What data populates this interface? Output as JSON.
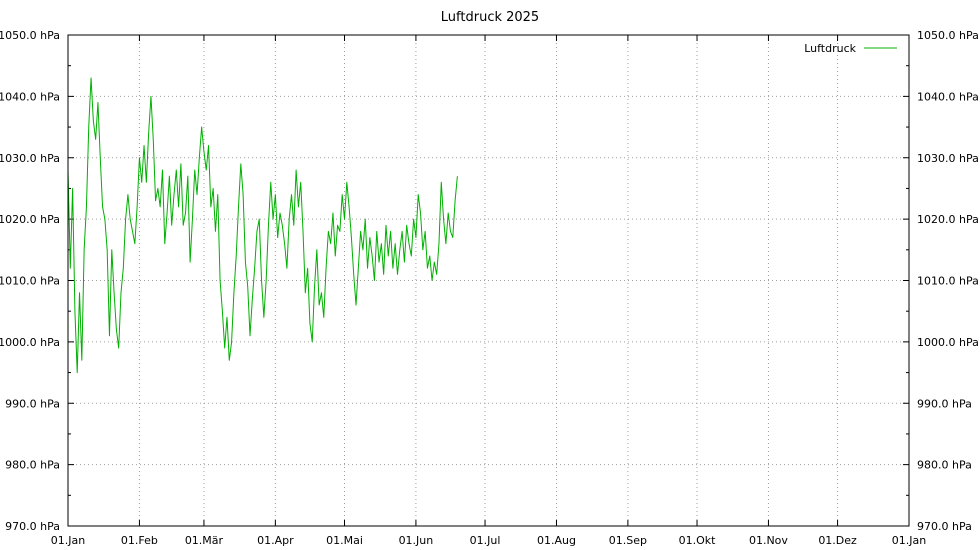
{
  "chart_data": {
    "type": "line",
    "title": "Luftdruck 2025",
    "xlabel": "",
    "ylabel": "",
    "unit": "hPa",
    "ylim": [
      970,
      1050
    ],
    "y_ticks": [
      "970.0 hPa",
      "980.0 hPa",
      "990.0 hPa",
      "1000.0 hPa",
      "1010.0 hPa",
      "1020.0 hPa",
      "1030.0 hPa",
      "1040.0 hPa",
      "1050.0 hPa"
    ],
    "y_tick_values": [
      970,
      980,
      990,
      1000,
      1010,
      1020,
      1030,
      1040,
      1050
    ],
    "x_range": [
      "2025-01-01",
      "2026-01-01"
    ],
    "x_ticks": [
      {
        "date": "2025-01-01",
        "label": "01.Jan"
      },
      {
        "date": "2025-02-01",
        "label": "01.Feb"
      },
      {
        "date": "2025-03-01",
        "label": "01.Mär"
      },
      {
        "date": "2025-04-01",
        "label": "01.Apr"
      },
      {
        "date": "2025-05-01",
        "label": "01.Mai"
      },
      {
        "date": "2025-06-01",
        "label": "01.Jun"
      },
      {
        "date": "2025-07-01",
        "label": "01.Jul"
      },
      {
        "date": "2025-08-01",
        "label": "01.Aug"
      },
      {
        "date": "2025-09-01",
        "label": "01.Sep"
      },
      {
        "date": "2025-10-01",
        "label": "01.Okt"
      },
      {
        "date": "2025-11-01",
        "label": "01.Nov"
      },
      {
        "date": "2025-12-01",
        "label": "01.Dez"
      },
      {
        "date": "2026-01-01",
        "label": "01.Jan"
      }
    ],
    "grid": true,
    "legend_position": "top-right",
    "series": [
      {
        "name": "Luftdruck",
        "color": "#00b000",
        "points": [
          [
            "2025-01-01",
            1028
          ],
          [
            "2025-01-02",
            1012
          ],
          [
            "2025-01-03",
            1025
          ],
          [
            "2025-01-04",
            1005
          ],
          [
            "2025-01-05",
            995
          ],
          [
            "2025-01-06",
            1008
          ],
          [
            "2025-01-07",
            997
          ],
          [
            "2025-01-08",
            1015
          ],
          [
            "2025-01-09",
            1022
          ],
          [
            "2025-01-10",
            1035
          ],
          [
            "2025-01-11",
            1043
          ],
          [
            "2025-01-12",
            1036
          ],
          [
            "2025-01-13",
            1033
          ],
          [
            "2025-01-14",
            1039
          ],
          [
            "2025-01-15",
            1030
          ],
          [
            "2025-01-16",
            1022
          ],
          [
            "2025-01-17",
            1020
          ],
          [
            "2025-01-18",
            1015
          ],
          [
            "2025-01-19",
            1001
          ],
          [
            "2025-01-20",
            1015
          ],
          [
            "2025-01-21",
            1008
          ],
          [
            "2025-01-22",
            1002
          ],
          [
            "2025-01-23",
            999
          ],
          [
            "2025-01-24",
            1008
          ],
          [
            "2025-01-25",
            1012
          ],
          [
            "2025-01-26",
            1020
          ],
          [
            "2025-01-27",
            1024
          ],
          [
            "2025-01-28",
            1020
          ],
          [
            "2025-01-29",
            1018
          ],
          [
            "2025-01-30",
            1016
          ],
          [
            "2025-01-31",
            1022
          ],
          [
            "2025-02-01",
            1030
          ],
          [
            "2025-02-02",
            1026
          ],
          [
            "2025-02-03",
            1032
          ],
          [
            "2025-02-04",
            1026
          ],
          [
            "2025-02-05",
            1034
          ],
          [
            "2025-02-06",
            1040
          ],
          [
            "2025-02-07",
            1033
          ],
          [
            "2025-02-08",
            1023
          ],
          [
            "2025-02-09",
            1025
          ],
          [
            "2025-02-10",
            1022
          ],
          [
            "2025-02-11",
            1028
          ],
          [
            "2025-02-12",
            1016
          ],
          [
            "2025-02-13",
            1021
          ],
          [
            "2025-02-14",
            1027
          ],
          [
            "2025-02-15",
            1019
          ],
          [
            "2025-02-16",
            1024
          ],
          [
            "2025-02-17",
            1028
          ],
          [
            "2025-02-18",
            1022
          ],
          [
            "2025-02-19",
            1029
          ],
          [
            "2025-02-20",
            1019
          ],
          [
            "2025-02-21",
            1021
          ],
          [
            "2025-02-22",
            1027
          ],
          [
            "2025-02-23",
            1013
          ],
          [
            "2025-02-24",
            1020
          ],
          [
            "2025-02-25",
            1028
          ],
          [
            "2025-02-26",
            1024
          ],
          [
            "2025-02-27",
            1030
          ],
          [
            "2025-02-28",
            1035
          ],
          [
            "2025-03-01",
            1031
          ],
          [
            "2025-03-02",
            1028
          ],
          [
            "2025-03-03",
            1032
          ],
          [
            "2025-03-04",
            1022
          ],
          [
            "2025-03-05",
            1025
          ],
          [
            "2025-03-06",
            1018
          ],
          [
            "2025-03-07",
            1024
          ],
          [
            "2025-03-08",
            1010
          ],
          [
            "2025-03-09",
            1005
          ],
          [
            "2025-03-10",
            999
          ],
          [
            "2025-03-11",
            1004
          ],
          [
            "2025-03-12",
            997
          ],
          [
            "2025-03-13",
            1000
          ],
          [
            "2025-03-14",
            1008
          ],
          [
            "2025-03-15",
            1014
          ],
          [
            "2025-03-16",
            1022
          ],
          [
            "2025-03-17",
            1029
          ],
          [
            "2025-03-18",
            1024
          ],
          [
            "2025-03-19",
            1013
          ],
          [
            "2025-03-20",
            1009
          ],
          [
            "2025-03-21",
            1001
          ],
          [
            "2025-03-22",
            1007
          ],
          [
            "2025-03-23",
            1012
          ],
          [
            "2025-03-24",
            1018
          ],
          [
            "2025-03-25",
            1020
          ],
          [
            "2025-03-26",
            1010
          ],
          [
            "2025-03-27",
            1004
          ],
          [
            "2025-03-28",
            1010
          ],
          [
            "2025-03-29",
            1019
          ],
          [
            "2025-03-30",
            1026
          ],
          [
            "2025-03-31",
            1020
          ],
          [
            "2025-04-01",
            1024
          ],
          [
            "2025-04-02",
            1017
          ],
          [
            "2025-04-03",
            1021
          ],
          [
            "2025-04-04",
            1019
          ],
          [
            "2025-04-05",
            1016
          ],
          [
            "2025-04-06",
            1012
          ],
          [
            "2025-04-07",
            1020
          ],
          [
            "2025-04-08",
            1024
          ],
          [
            "2025-04-09",
            1019
          ],
          [
            "2025-04-10",
            1028
          ],
          [
            "2025-04-11",
            1022
          ],
          [
            "2025-04-12",
            1026
          ],
          [
            "2025-04-13",
            1018
          ],
          [
            "2025-04-14",
            1008
          ],
          [
            "2025-04-15",
            1012
          ],
          [
            "2025-04-16",
            1003
          ],
          [
            "2025-04-17",
            1000
          ],
          [
            "2025-04-18",
            1009
          ],
          [
            "2025-04-19",
            1015
          ],
          [
            "2025-04-20",
            1006
          ],
          [
            "2025-04-21",
            1008
          ],
          [
            "2025-04-22",
            1004
          ],
          [
            "2025-04-23",
            1012
          ],
          [
            "2025-04-24",
            1018
          ],
          [
            "2025-04-25",
            1016
          ],
          [
            "2025-04-26",
            1021
          ],
          [
            "2025-04-27",
            1014
          ],
          [
            "2025-04-28",
            1019
          ],
          [
            "2025-04-29",
            1018
          ],
          [
            "2025-04-30",
            1024
          ],
          [
            "2025-05-01",
            1020
          ],
          [
            "2025-05-02",
            1026
          ],
          [
            "2025-05-03",
            1022
          ],
          [
            "2025-05-04",
            1017
          ],
          [
            "2025-05-05",
            1011
          ],
          [
            "2025-05-06",
            1006
          ],
          [
            "2025-05-07",
            1012
          ],
          [
            "2025-05-08",
            1018
          ],
          [
            "2025-05-09",
            1015
          ],
          [
            "2025-05-10",
            1020
          ],
          [
            "2025-05-11",
            1012
          ],
          [
            "2025-05-12",
            1017
          ],
          [
            "2025-05-13",
            1014
          ],
          [
            "2025-05-14",
            1010
          ],
          [
            "2025-05-15",
            1018
          ],
          [
            "2025-05-16",
            1013
          ],
          [
            "2025-05-17",
            1016
          ],
          [
            "2025-05-18",
            1011
          ],
          [
            "2025-05-19",
            1019
          ],
          [
            "2025-05-20",
            1014
          ],
          [
            "2025-05-21",
            1018
          ],
          [
            "2025-05-22",
            1012
          ],
          [
            "2025-05-23",
            1016
          ],
          [
            "2025-05-24",
            1011
          ],
          [
            "2025-05-25",
            1015
          ],
          [
            "2025-05-26",
            1018
          ],
          [
            "2025-05-27",
            1013
          ],
          [
            "2025-05-28",
            1019
          ],
          [
            "2025-05-29",
            1016
          ],
          [
            "2025-05-30",
            1014
          ],
          [
            "2025-05-31",
            1020
          ],
          [
            "2025-06-01",
            1017
          ],
          [
            "2025-06-02",
            1024
          ],
          [
            "2025-06-03",
            1021
          ],
          [
            "2025-06-04",
            1015
          ],
          [
            "2025-06-05",
            1018
          ],
          [
            "2025-06-06",
            1012
          ],
          [
            "2025-06-07",
            1014
          ],
          [
            "2025-06-08",
            1010
          ],
          [
            "2025-06-09",
            1013
          ],
          [
            "2025-06-10",
            1011
          ],
          [
            "2025-06-11",
            1016
          ],
          [
            "2025-06-12",
            1026
          ],
          [
            "2025-06-13",
            1020
          ],
          [
            "2025-06-14",
            1016
          ],
          [
            "2025-06-15",
            1021
          ],
          [
            "2025-06-16",
            1018
          ],
          [
            "2025-06-17",
            1017
          ],
          [
            "2025-06-18",
            1023
          ],
          [
            "2025-06-19",
            1027
          ]
        ]
      }
    ]
  }
}
